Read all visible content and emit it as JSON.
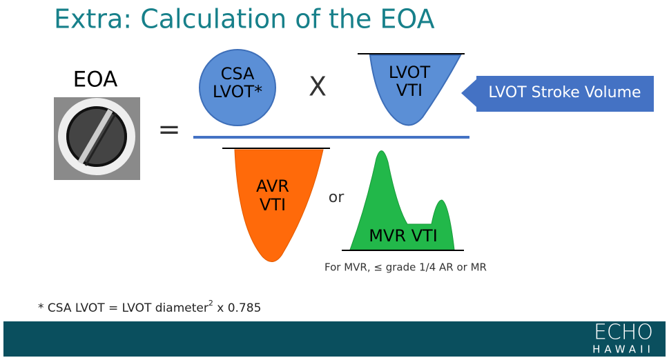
{
  "header": {
    "title": "Extra: Calculation of the EOA"
  },
  "formula": {
    "left_label": "EOA",
    "equals": "=",
    "numerator": {
      "csa": [
        "CSA",
        "LVOT*"
      ],
      "times": "X",
      "lvot_vti": [
        "LVOT",
        "VTI"
      ],
      "callout": "LVOT Stroke Volume"
    },
    "denominator": {
      "avr_vti": [
        "AVR",
        "VTI"
      ],
      "or": "or",
      "mvr_vti": "MVR VTI",
      "note": "For MVR, ≤ grade 1/4 AR or MR"
    }
  },
  "footnote": {
    "text": "* CSA LVOT = LVOT diameter",
    "superscript": "2",
    "tail": " x 0.785"
  },
  "logo": {
    "top": "ECHO",
    "bottom": "HAWAII"
  }
}
